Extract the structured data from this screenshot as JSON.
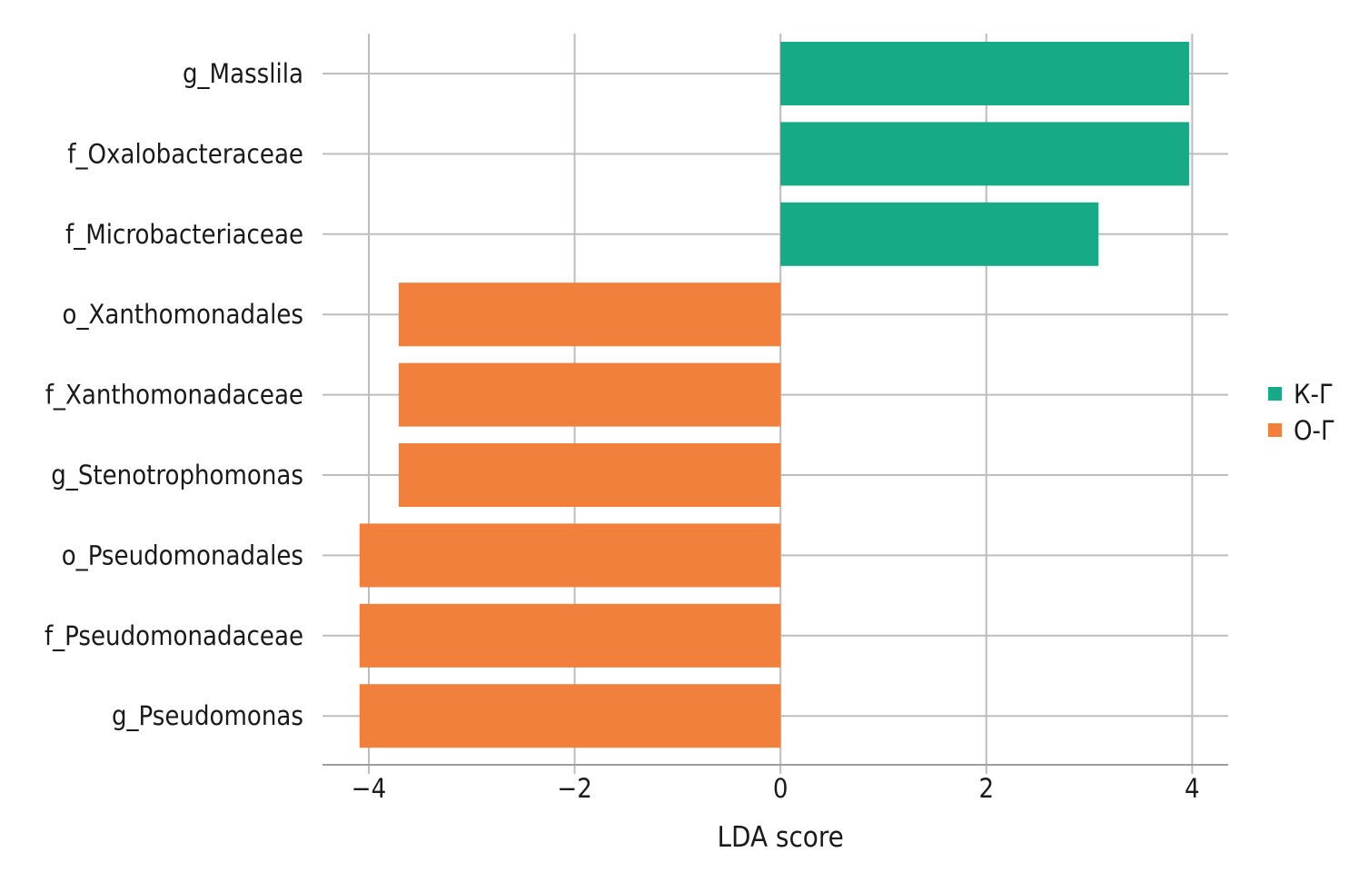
{
  "chart_data": {
    "type": "bar",
    "orientation": "horizontal",
    "categories": [
      "g_Masslila",
      "f_Oxalobacteraceae",
      "f_Microbacteriaceae",
      "o_Xanthomonadales",
      "f_Xanthomonadaceae",
      "g_Stenotrophomonas",
      "o_Pseudomonadales",
      "f_Pseudomonadaceae",
      "g_Pseudomonas"
    ],
    "values": [
      3.97,
      3.97,
      3.09,
      -3.71,
      -3.71,
      -3.71,
      -4.09,
      -4.09,
      -4.09
    ],
    "groups": [
      "К-Г",
      "К-Г",
      "К-Г",
      "О-Г",
      "О-Г",
      "О-Г",
      "О-Г",
      "О-Г",
      "О-Г"
    ],
    "xlabel": "LDA score",
    "ylabel": "",
    "xlim": [
      -4.45,
      4.35
    ],
    "xticks": [
      -4,
      -2,
      0,
      2,
      4
    ],
    "xtick_labels": [
      "−4",
      "−2",
      "0",
      "2",
      "4"
    ],
    "grid": true,
    "legend": {
      "placement": "right",
      "entries": [
        {
          "name": "К-Г",
          "color": "#16ab86"
        },
        {
          "name": "О-Г",
          "color": "#f0803c"
        }
      ]
    }
  }
}
